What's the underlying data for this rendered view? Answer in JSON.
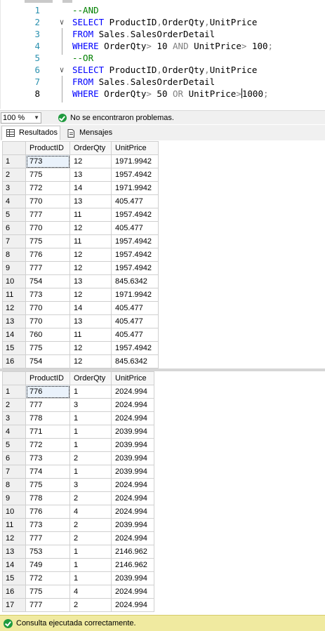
{
  "editor": {
    "lines": [
      {
        "num": "1",
        "tokens": [
          {
            "t": "--AND",
            "c": "cm"
          }
        ]
      },
      {
        "num": "2",
        "tokens": [
          {
            "t": "SELECT",
            "c": "kw"
          },
          {
            "t": " ProductID",
            "c": "id"
          },
          {
            "t": ",",
            "c": "gr"
          },
          {
            "t": "OrderQty",
            "c": "id"
          },
          {
            "t": ",",
            "c": "gr"
          },
          {
            "t": "UnitPrice",
            "c": "id"
          }
        ]
      },
      {
        "num": "3",
        "tokens": [
          {
            "t": "FROM",
            "c": "kw"
          },
          {
            "t": " Sales",
            "c": "id"
          },
          {
            "t": ".",
            "c": "gr"
          },
          {
            "t": "SalesOrderDetail",
            "c": "id"
          }
        ]
      },
      {
        "num": "4",
        "tokens": [
          {
            "t": "WHERE",
            "c": "kw"
          },
          {
            "t": " OrderQty",
            "c": "id"
          },
          {
            "t": ">",
            "c": "gr"
          },
          {
            "t": " 10 ",
            "c": "id"
          },
          {
            "t": "AND",
            "c": "gr"
          },
          {
            "t": " UnitPrice",
            "c": "id"
          },
          {
            "t": ">",
            "c": "gr"
          },
          {
            "t": " 100",
            "c": "id"
          },
          {
            "t": ";",
            "c": "gr"
          }
        ]
      },
      {
        "num": "5",
        "tokens": [
          {
            "t": "--OR",
            "c": "cm"
          }
        ]
      },
      {
        "num": "6",
        "tokens": [
          {
            "t": "SELECT",
            "c": "kw"
          },
          {
            "t": " ProductID",
            "c": "id"
          },
          {
            "t": ",",
            "c": "gr"
          },
          {
            "t": "OrderQty",
            "c": "id"
          },
          {
            "t": ",",
            "c": "gr"
          },
          {
            "t": "UnitPrice",
            "c": "id"
          }
        ]
      },
      {
        "num": "7",
        "tokens": [
          {
            "t": "FROM",
            "c": "kw"
          },
          {
            "t": " Sales",
            "c": "id"
          },
          {
            "t": ".",
            "c": "gr"
          },
          {
            "t": "SalesOrderDetail",
            "c": "id"
          }
        ]
      },
      {
        "num": "8",
        "tokens": [
          {
            "t": "WHERE",
            "c": "kw"
          },
          {
            "t": " OrderQty",
            "c": "id"
          },
          {
            "t": ">",
            "c": "gr"
          },
          {
            "t": " 50 ",
            "c": "id"
          },
          {
            "t": "OR",
            "c": "gr"
          },
          {
            "t": " UnitPrice",
            "c": "id"
          },
          {
            "t": ">",
            "c": "gr"
          },
          {
            "t": "|",
            "c": "caret"
          },
          {
            "t": "1000",
            "c": "id"
          },
          {
            "t": ";",
            "c": "gr"
          }
        ]
      }
    ],
    "current_line": "8"
  },
  "status": {
    "zoom": "100 %",
    "problems": "No se encontraron problemas."
  },
  "tabs": {
    "results": "Resultados",
    "messages": "Mensajes"
  },
  "grid1": {
    "columns": [
      "ProductID",
      "OrderQty",
      "UnitPrice"
    ],
    "rows": [
      [
        "1",
        "773",
        "12",
        "1971.9942"
      ],
      [
        "2",
        "775",
        "13",
        "1957.4942"
      ],
      [
        "3",
        "772",
        "14",
        "1971.9942"
      ],
      [
        "4",
        "770",
        "13",
        "405.477"
      ],
      [
        "5",
        "777",
        "11",
        "1957.4942"
      ],
      [
        "6",
        "770",
        "12",
        "405.477"
      ],
      [
        "7",
        "775",
        "11",
        "1957.4942"
      ],
      [
        "8",
        "776",
        "12",
        "1957.4942"
      ],
      [
        "9",
        "777",
        "12",
        "1957.4942"
      ],
      [
        "10",
        "754",
        "13",
        "845.6342"
      ],
      [
        "11",
        "773",
        "12",
        "1971.9942"
      ],
      [
        "12",
        "770",
        "14",
        "405.477"
      ],
      [
        "13",
        "770",
        "13",
        "405.477"
      ],
      [
        "14",
        "760",
        "11",
        "405.477"
      ],
      [
        "15",
        "775",
        "12",
        "1957.4942"
      ],
      [
        "16",
        "754",
        "12",
        "845.6342"
      ]
    ]
  },
  "grid2": {
    "columns": [
      "ProductID",
      "OrderQty",
      "UnitPrice"
    ],
    "rows": [
      [
        "1",
        "776",
        "1",
        "2024.994"
      ],
      [
        "2",
        "777",
        "3",
        "2024.994"
      ],
      [
        "3",
        "778",
        "1",
        "2024.994"
      ],
      [
        "4",
        "771",
        "1",
        "2039.994"
      ],
      [
        "5",
        "772",
        "1",
        "2039.994"
      ],
      [
        "6",
        "773",
        "2",
        "2039.994"
      ],
      [
        "7",
        "774",
        "1",
        "2039.994"
      ],
      [
        "8",
        "775",
        "3",
        "2024.994"
      ],
      [
        "9",
        "778",
        "2",
        "2024.994"
      ],
      [
        "10",
        "776",
        "4",
        "2024.994"
      ],
      [
        "11",
        "773",
        "2",
        "2039.994"
      ],
      [
        "12",
        "777",
        "2",
        "2024.994"
      ],
      [
        "13",
        "753",
        "1",
        "2146.962"
      ],
      [
        "14",
        "749",
        "1",
        "2146.962"
      ],
      [
        "15",
        "772",
        "1",
        "2039.994"
      ],
      [
        "16",
        "775",
        "4",
        "2024.994"
      ],
      [
        "17",
        "777",
        "2",
        "2024.994"
      ]
    ]
  },
  "exec": {
    "message": "Consulta ejecutada correctamente."
  },
  "colors": {
    "keyword": "#0000ff",
    "comment": "#008000",
    "operator": "#808080",
    "line_number": "#2b91af",
    "success": "#1f9a3e",
    "exec_bar": "#f0eaa0"
  },
  "icons": {
    "status": "check-circle-icon",
    "results_tab": "grid-icon",
    "messages_tab": "document-icon",
    "exec": "check-circle-icon"
  }
}
